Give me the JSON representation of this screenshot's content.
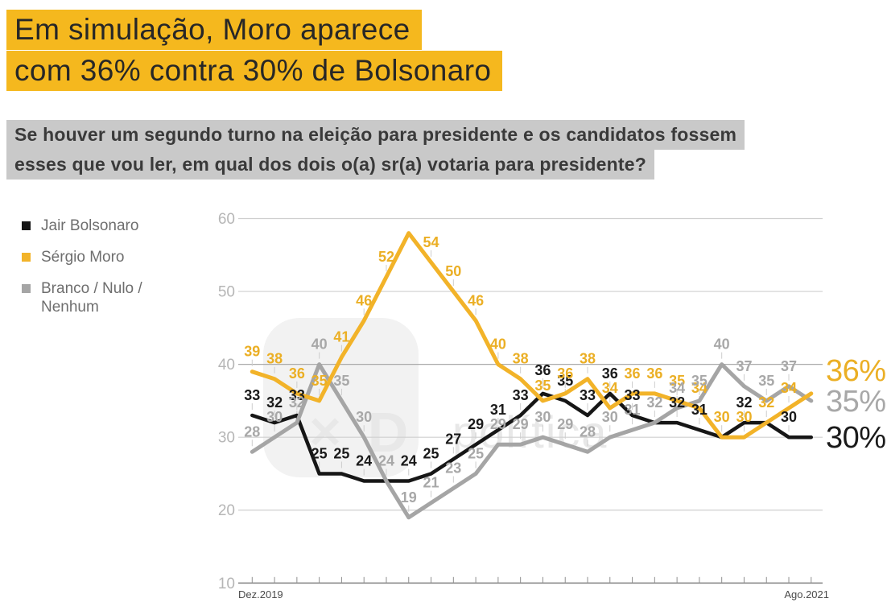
{
  "title": {
    "line1": "Em simulação, Moro aparece",
    "line2": "com 36% contra 30% de Bolsonaro",
    "highlight_color": "#F5B81E"
  },
  "subtitle": {
    "line1": "Se houver um segundo turno na eleição para presidente e os candidatos fossem",
    "line2": "esses que vou ler, em qual dos dois o(a) sr(a) votaria para presidente?",
    "highlight_color": "#C9C9C9"
  },
  "legend": {
    "items": [
      {
        "label": "Jair Bolsonaro"
      },
      {
        "label": "Sérgio Moro"
      },
      {
        "label": "Branco / Nulo / Nenhum"
      }
    ]
  },
  "watermark": {
    "text": "política",
    "logo_glyphs": "✕D",
    "box_color": "#F2F2F2",
    "glyph_color": "#E8E8E8"
  },
  "chart_data": {
    "type": "line",
    "title": "",
    "xlabel": "",
    "ylabel": "",
    "x_axis": {
      "num_points": 26,
      "first_tick_label": "Dez.2019",
      "last_tick_label": "Ago.2021"
    },
    "y_axis": {
      "ticks": [
        60,
        50,
        40,
        30,
        20,
        10
      ],
      "range": [
        10,
        60
      ],
      "grid": true
    },
    "series": [
      {
        "name": "Jair Bolsonaro",
        "color": "#161616",
        "label_color": "#1A1A1A",
        "end_label": "30%",
        "values": [
          33,
          32,
          33,
          25,
          25,
          24,
          24,
          24,
          25,
          27,
          29,
          31,
          33,
          36,
          35,
          33,
          36,
          33,
          32,
          32,
          31,
          30,
          32,
          32,
          30,
          30
        ],
        "hidden_point_labels": [
          6,
          18,
          21,
          23,
          25
        ]
      },
      {
        "name": "Sérgio Moro",
        "color": "#F2B329",
        "label_color": "#EBAF25",
        "end_label": "36%",
        "values": [
          39,
          38,
          36,
          35,
          41,
          46,
          52,
          58,
          54,
          50,
          46,
          40,
          38,
          35,
          36,
          38,
          34,
          36,
          36,
          35,
          34,
          30,
          30,
          32,
          34,
          36
        ],
        "hidden_point_labels": [
          7,
          25
        ]
      },
      {
        "name": "Branco / Nulo / Nenhum",
        "color": "#A5A5A5",
        "label_color": "#A8A8A8",
        "end_label": "35%",
        "values": [
          28,
          30,
          32,
          40,
          35,
          30,
          24,
          19,
          21,
          23,
          25,
          29,
          29,
          30,
          29,
          28,
          30,
          31,
          32,
          34,
          35,
          40,
          37,
          35,
          37,
          35
        ],
        "hidden_point_labels": [
          25
        ]
      }
    ],
    "legend_position": "left",
    "gridline_color": "#CFCFCF",
    "gridline_color_40": "#ABABAB",
    "axis_color": "#8F8F8F",
    "tick_label_color": "#B6B6B6",
    "x_label_color": "#4A4A4A"
  }
}
